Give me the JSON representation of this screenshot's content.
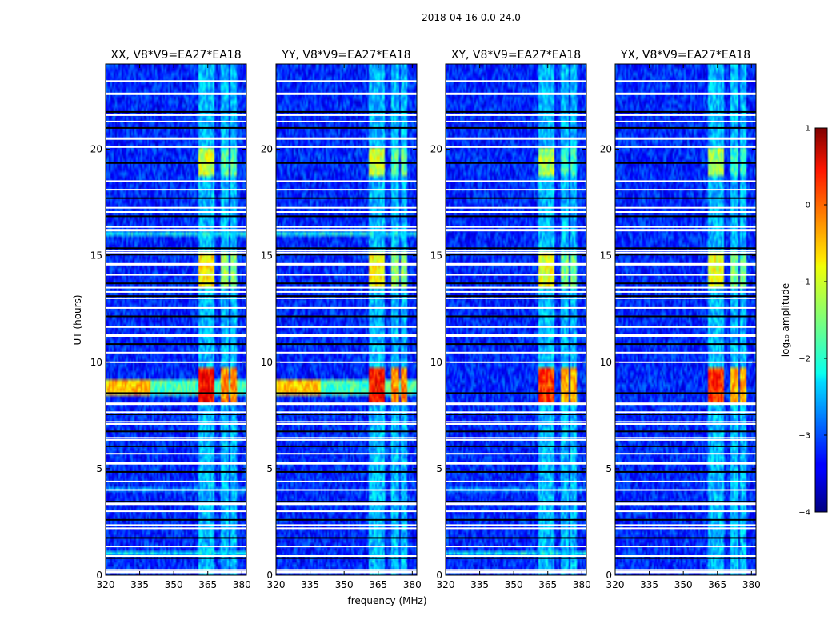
{
  "figure": {
    "suptitle": "2018-04-16 0.0-24.0",
    "xlabel": "frequency (MHz)",
    "ylabel": "UT (hours)"
  },
  "colorbar": {
    "label": "log₁₀ amplitude",
    "range": [
      -4,
      1
    ],
    "ticks": [
      1,
      0,
      -1,
      -2,
      -3,
      -4
    ],
    "tick_labels": [
      "1",
      "0",
      "−1",
      "−2",
      "−3",
      "−4"
    ],
    "colormap": "jet"
  },
  "chart_data": {
    "type": "heatmap",
    "title": "2018-04-16 0.0-24.0",
    "xlabel": "frequency (MHz)",
    "ylabel": "UT (hours)",
    "xlim": [
      320,
      382
    ],
    "ylim": [
      0,
      24
    ],
    "x_ticks": [
      320,
      335,
      350,
      365,
      380
    ],
    "y_ticks": [
      0,
      5,
      10,
      15,
      20
    ],
    "value_label": "log10 amplitude",
    "value_range": [
      -4,
      1
    ],
    "panels": [
      {
        "title": "XX, V8*V9=EA27*EA18",
        "polarization": "XX",
        "cross_hand": false
      },
      {
        "title": "YY, V8*V9=EA27*EA18",
        "polarization": "YY",
        "cross_hand": false
      },
      {
        "title": "XY, V8*V9=EA27*EA18",
        "polarization": "XY",
        "cross_hand": true
      },
      {
        "title": "YX, V8*V9=EA27*EA18",
        "polarization": "YX",
        "cross_hand": true
      }
    ],
    "features": {
      "background_log_amp": -3.2,
      "rfi_bands_mhz": [
        [
          361,
          365
        ],
        [
          365,
          368
        ],
        [
          371,
          374
        ],
        [
          375,
          378
        ]
      ],
      "rfi_episodes_ut": [
        {
          "ut": [
            8.1,
            9.8
          ],
          "peak_log_amp": 0.3
        },
        {
          "ut": [
            13.5,
            15.1
          ],
          "peak_log_amp": -0.8
        },
        {
          "ut": [
            18.8,
            20.0
          ],
          "peak_log_amp": -1.1
        }
      ],
      "broadband_event_ut": [
        8.4,
        9.2
      ],
      "flagged_rows_ut": [
        0.15,
        0.25,
        0.8,
        0.9,
        1.35,
        1.75,
        2.2,
        2.35,
        2.6,
        3.0,
        3.35,
        3.45,
        4.0,
        4.4,
        4.85,
        5.25,
        5.7,
        6.05,
        6.35,
        6.45,
        6.75,
        7.1,
        7.2,
        7.55,
        7.65,
        8.05,
        8.55,
        10.0,
        10.45,
        10.85,
        11.25,
        11.65,
        12.15,
        12.55,
        13.0,
        13.1,
        13.3,
        13.5,
        13.7,
        14.1,
        14.6,
        15.05,
        15.15,
        15.25,
        15.35,
        16.2,
        16.35,
        16.85,
        17.05,
        17.25,
        17.7,
        18.1,
        18.5,
        19.35,
        20.1,
        20.5,
        21.0,
        21.3,
        21.6,
        21.75,
        22.6,
        23.2
      ]
    }
  }
}
